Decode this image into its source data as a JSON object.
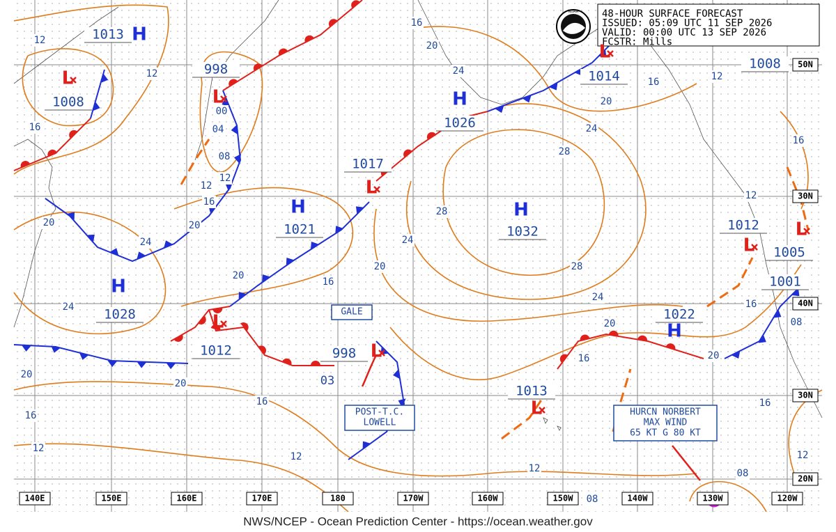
{
  "header": {
    "lines": [
      "48-HOUR SURFACE FORECAST",
      "ISSUED: 05:09 UTC 11 SEP 2026",
      "VALID:  00:00 UTC 13 SEP 2026",
      "FCSTR:  Mills"
    ],
    "logo": "NOAA"
  },
  "footer": "NWS/NCEP - Ocean Prediction Center - https://ocean.weather.gov",
  "longitude_labels": [
    "140E",
    "150E",
    "160E",
    "170E",
    "180",
    "170W",
    "160W",
    "150W",
    "140W",
    "130W",
    "120W"
  ],
  "latitude_labels": [
    "50N",
    "30N",
    "40N",
    "30N",
    "20N"
  ],
  "pressure_centers": [
    {
      "symbol": "H",
      "pressure": "1013"
    },
    {
      "symbol": "L",
      "pressure": "1008"
    },
    {
      "symbol": "L",
      "pressure": "998"
    },
    {
      "symbol": "H",
      "pressure": "1026"
    },
    {
      "symbol": "L",
      "pressure": "1017"
    },
    {
      "symbol": "H",
      "pressure": "1021"
    },
    {
      "symbol": "H",
      "pressure": "1032"
    },
    {
      "symbol": "H",
      "pressure": "1028"
    },
    {
      "symbol": "L",
      "pressure": "1012"
    },
    {
      "symbol": "L",
      "pressure": "998"
    },
    {
      "symbol": "L",
      "pressure": "1013"
    },
    {
      "symbol": "L",
      "pressure": "1014"
    },
    {
      "pressure": "1008"
    },
    {
      "symbol": "H",
      "pressure": "1022"
    },
    {
      "symbol": "L",
      "pressure": "1012"
    },
    {
      "symbol": "L",
      "pressure": "1005"
    },
    {
      "pressure": "1001"
    }
  ],
  "isobar_labels": [
    "12",
    "12",
    "16",
    "00",
    "04",
    "08",
    "12",
    "12",
    "16",
    "20",
    "20",
    "24",
    "24",
    "20",
    "16",
    "20",
    "24",
    "28",
    "28",
    "24",
    "20",
    "16",
    "12",
    "16",
    "20",
    "24",
    "28",
    "24",
    "20",
    "16",
    "20",
    "16",
    "08",
    "12",
    "16",
    "16",
    "12",
    "08",
    "08",
    "12",
    "12",
    "16",
    "20",
    "20",
    "16",
    "12",
    "03"
  ],
  "annotations": [
    {
      "lines": [
        "GALE"
      ]
    },
    {
      "lines": [
        "POST-T.C.",
        "LOWELL"
      ]
    },
    {
      "lines": [
        "HURCN NORBERT",
        "MAX WIND",
        "65 KT G 80 KT"
      ]
    }
  ]
}
